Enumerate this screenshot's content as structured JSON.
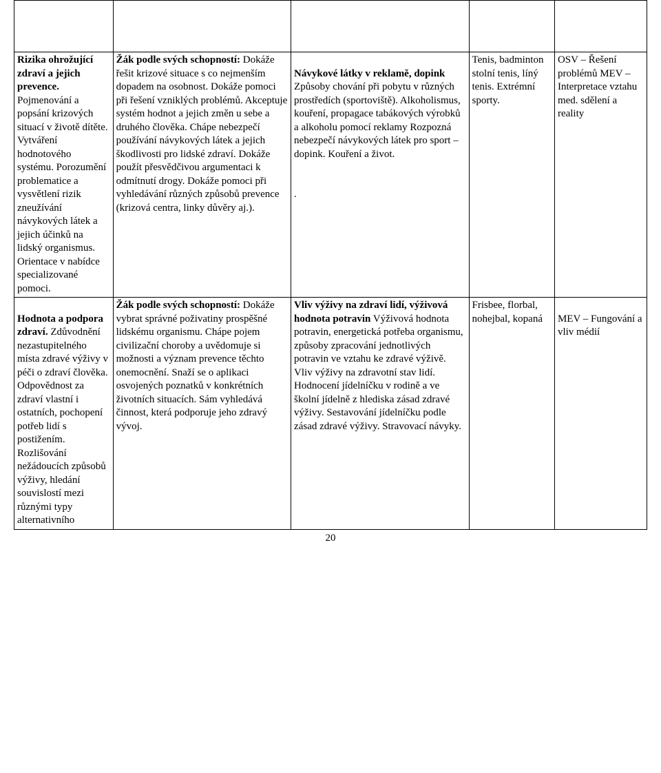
{
  "page_number": "20",
  "table": {
    "columns": 5,
    "col_widths_pct": [
      15,
      27,
      27,
      13,
      14
    ],
    "row1": {
      "c1_bold": "Rizika ohrožující zdraví a jejich prevence.",
      "c1_rest": " Pojmenování a popsání krizových situací v životě dítěte. Vytváření hodnotového systému. Porozumění problematice a vysvětlení rizik zneužívání návykových látek a jejich účinků na lidský organismus. Orientace v nabídce specializované pomoci.",
      "c2_bold": "Žák podle svých schopností:",
      "c2_rest": " Dokáže řešit krizové situace s co nejmenším dopadem na osobnost. Dokáže pomoci při řešení vzniklých problémů. Akceptuje systém hodnot a jejich změn u sebe a druhého člověka. Chápe nebezpečí používání návykových látek a jejich škodlivosti pro lidské zdraví. Dokáže použít přesvědčivou argumentaci k odmítnutí drogy. Dokáže pomoci při vyhledávání různých způsobů prevence (krizová centra, linky důvěry aj.).",
      "c3_bold": "Návykové látky v reklamě, dopink",
      "c3_rest": " Způsoby chování při pobytu v různých prostředích (sportoviště). Alkoholismus, kouření, propagace tabákových výrobků a alkoholu pomocí reklamy Rozpozná nebezpečí návykových látek pro sport – dopink. Kouření a život.\n\n\n.",
      "c4": "Tenis, badminton stolní tenis, líný tenis. Extrémní sporty.",
      "c5": "OSV – Řešení problémů MEV – Interpretace vztahu med. sdělení a reality"
    },
    "row2": {
      "c1_bold": "Hodnota a podpora zdraví.",
      "c1_rest": " Zdůvodnění nezastupitelného místa zdravé výživy v péči o zdraví člověka. Odpovědnost za zdraví vlastní i ostatních, pochopení potřeb lidí s postižením. Rozlišování nežádoucích způsobů výživy, hledání souvislostí mezi různými typy alternativního",
      "c2_bold": "Žák podle svých schopností:",
      "c2_rest": " Dokáže vybrat správné poživatiny prospěšné lidskému organismu. Chápe pojem civilizační choroby a uvědomuje si možnosti a význam prevence těchto onemocnění. Snaží se o aplikaci osvojených poznatků v konkrétních životních situacích. Sám vyhledává činnost, která podporuje jeho zdravý vývoj.",
      "c3_bold": "Vliv výživy na zdraví lidí, výživová hodnota potravin",
      "c3_rest": " Výživová hodnota potravin, energetická potřeba organismu, způsoby zpracování jednotlivých potravin ve vztahu ke zdravé výživě. Vliv výživy na zdravotní stav lidí. Hodnocení jídelníčku v rodině a ve školní jídelně z hlediska zásad zdravé výživy. Sestavování jídelníčku podle zásad zdravé výživy. Stravovací návyky.",
      "c4": "Frisbee, florbal, nohejbal, kopaná",
      "c5": "\nMEV – Fungování a vliv médií"
    }
  },
  "styles": {
    "font_family": "Times New Roman",
    "font_size_pt": 15,
    "text_color": "#000000",
    "border_color": "#000000",
    "background_color": "#ffffff"
  }
}
